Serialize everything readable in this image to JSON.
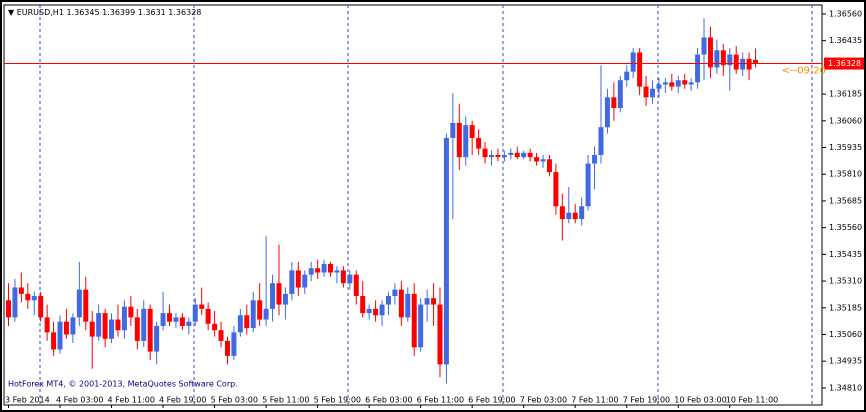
{
  "chart_data": {
    "type": "candlestick",
    "symbol": "EURUSD,H1",
    "footer": "HotForex MT4, © 2001-2013, MetaQuotes Software Corp.",
    "timer_label": "<--09:20",
    "up_color": "#4169e1",
    "down_color": "#ff0000",
    "price_line_color": "#ff0000",
    "grid": false,
    "ylim": [
      1.3473,
      1.36602
    ],
    "yticks": [
      {
        "value": 1.3656,
        "label": "1.36560"
      },
      1.36435,
      1.36185,
      {
        "value": 1.3606,
        "label": "1.36060"
      },
      1.35935,
      {
        "value": 1.3581,
        "label": "1.35810"
      },
      1.35685,
      {
        "value": 1.3556,
        "label": "1.35560"
      },
      1.35435,
      {
        "value": 1.3531,
        "label": "1.35310"
      },
      1.35185,
      {
        "value": 1.3506,
        "label": "1.35060"
      },
      1.34935,
      {
        "value": 1.3481,
        "label": "1.34810"
      }
    ],
    "categories": [
      "3 Feb 2014",
      null,
      null,
      null,
      null,
      null,
      null,
      null,
      "4 Feb 03:00",
      null,
      null,
      null,
      null,
      null,
      null,
      null,
      "4 Feb 11:00",
      null,
      null,
      null,
      null,
      null,
      null,
      null,
      "4 Feb 19:00",
      null,
      null,
      null,
      null,
      null,
      null,
      null,
      "5 Feb 03:00",
      null,
      null,
      null,
      null,
      null,
      null,
      null,
      "5 Feb 11:00",
      null,
      null,
      null,
      null,
      null,
      null,
      null,
      "5 Feb 19:00",
      null,
      null,
      null,
      null,
      null,
      null,
      null,
      "6 Feb 03:00",
      null,
      null,
      null,
      null,
      null,
      null,
      null,
      "6 Feb 11:00",
      null,
      null,
      null,
      null,
      null,
      null,
      null,
      "6 Feb 19:00",
      null,
      null,
      null,
      null,
      null,
      null,
      null,
      "7 Feb 03:00",
      null,
      null,
      null,
      null,
      null,
      null,
      null,
      "7 Feb 11:00",
      null,
      null,
      null,
      null,
      null,
      null,
      null,
      "7 Feb 19:00",
      null,
      null,
      null,
      null,
      null,
      null,
      null,
      "10 Feb 03:00",
      null,
      null,
      null,
      null,
      null,
      null,
      null,
      "10 Feb 11:00",
      null,
      null,
      null,
      null
    ],
    "ohlc": [
      [
        1.3522,
        1.353,
        1.351,
        1.3514
      ],
      [
        1.3514,
        1.3532,
        1.3512,
        1.3528
      ],
      [
        1.3528,
        1.3535,
        1.3521,
        1.3525
      ],
      [
        1.3525,
        1.353,
        1.3518,
        1.3522
      ],
      [
        1.3522,
        1.3526,
        1.3515,
        1.3524
      ],
      [
        1.3524,
        1.3526,
        1.3512,
        1.3514
      ],
      [
        1.3514,
        1.352,
        1.3503,
        1.3507
      ],
      [
        1.3507,
        1.3512,
        1.3496,
        1.3499
      ],
      [
        1.3499,
        1.3515,
        1.3497,
        1.3512
      ],
      [
        1.3512,
        1.3518,
        1.3504,
        1.3506
      ],
      [
        1.3506,
        1.3516,
        1.3502,
        1.3514
      ],
      [
        1.3514,
        1.354,
        1.351,
        1.3527
      ],
      [
        1.3527,
        1.3533,
        1.3508,
        1.3512
      ],
      [
        1.3512,
        1.3517,
        1.349,
        1.3505
      ],
      [
        1.3505,
        1.352,
        1.3503,
        1.3516
      ],
      [
        1.3516,
        1.3518,
        1.35,
        1.3504
      ],
      [
        1.3504,
        1.3516,
        1.3502,
        1.3513
      ],
      [
        1.3513,
        1.352,
        1.3505,
        1.3508
      ],
      [
        1.3508,
        1.3522,
        1.3504,
        1.3519
      ],
      [
        1.3519,
        1.3524,
        1.351,
        1.3514
      ],
      [
        1.3514,
        1.3518,
        1.3499,
        1.3503
      ],
      [
        1.3503,
        1.3522,
        1.35,
        1.3518
      ],
      [
        1.3518,
        1.352,
        1.3494,
        1.3498
      ],
      [
        1.3498,
        1.3512,
        1.3492,
        1.351
      ],
      [
        1.351,
        1.3526,
        1.3508,
        1.3516
      ],
      [
        1.3516,
        1.352,
        1.351,
        1.3512
      ],
      [
        1.3512,
        1.3516,
        1.3509,
        1.3514
      ],
      [
        1.3514,
        1.3516,
        1.3508,
        1.351
      ],
      [
        1.351,
        1.3514,
        1.3506,
        1.3512
      ],
      [
        1.3512,
        1.3523,
        1.351,
        1.352
      ],
      [
        1.352,
        1.3528,
        1.3515,
        1.3518
      ],
      [
        1.3518,
        1.3521,
        1.3508,
        1.3511
      ],
      [
        1.3511,
        1.3517,
        1.3505,
        1.3508
      ],
      [
        1.3508,
        1.3512,
        1.35,
        1.3503
      ],
      [
        1.3503,
        1.3505,
        1.3492,
        1.3496
      ],
      [
        1.3496,
        1.351,
        1.3494,
        1.3507
      ],
      [
        1.3507,
        1.3518,
        1.3505,
        1.3515
      ],
      [
        1.3515,
        1.352,
        1.3506,
        1.3509
      ],
      [
        1.3509,
        1.3526,
        1.3507,
        1.3522
      ],
      [
        1.3522,
        1.353,
        1.351,
        1.3513
      ],
      [
        1.3513,
        1.3552,
        1.351,
        1.3518
      ],
      [
        1.3518,
        1.3534,
        1.3512,
        1.353
      ],
      [
        1.353,
        1.3548,
        1.3515,
        1.352
      ],
      [
        1.352,
        1.3528,
        1.3513,
        1.3525
      ],
      [
        1.3525,
        1.354,
        1.3522,
        1.3536
      ],
      [
        1.3536,
        1.354,
        1.3524,
        1.3528
      ],
      [
        1.3528,
        1.3536,
        1.3525,
        1.3534
      ],
      [
        1.3534,
        1.354,
        1.3531,
        1.3537
      ],
      [
        1.3537,
        1.3541,
        1.3532,
        1.3535
      ],
      [
        1.3535,
        1.3541,
        1.3533,
        1.3539
      ],
      [
        1.3539,
        1.354,
        1.3533,
        1.3535
      ],
      [
        1.3535,
        1.3538,
        1.353,
        1.3536
      ],
      [
        1.3536,
        1.3538,
        1.3528,
        1.353
      ],
      [
        1.353,
        1.3536,
        1.3527,
        1.3534
      ],
      [
        1.3534,
        1.3536,
        1.352,
        1.3524
      ],
      [
        1.3524,
        1.3531,
        1.3514,
        1.3516
      ],
      [
        1.3516,
        1.352,
        1.3513,
        1.3518
      ],
      [
        1.3518,
        1.3522,
        1.3512,
        1.3515
      ],
      [
        1.3515,
        1.3522,
        1.351,
        1.352
      ],
      [
        1.352,
        1.3526,
        1.3515,
        1.3524
      ],
      [
        1.3524,
        1.353,
        1.352,
        1.3527
      ],
      [
        1.3527,
        1.3531,
        1.351,
        1.3514
      ],
      [
        1.3514,
        1.3528,
        1.3512,
        1.3525
      ],
      [
        1.3525,
        1.353,
        1.3496,
        1.35
      ],
      [
        1.35,
        1.3523,
        1.3498,
        1.352
      ],
      [
        1.352,
        1.3527,
        1.3512,
        1.3523
      ],
      [
        1.3523,
        1.353,
        1.351,
        1.352
      ],
      [
        1.352,
        1.3528,
        1.3486,
        1.3492
      ],
      [
        1.3492,
        1.36,
        1.3483,
        1.3598
      ],
      [
        1.3598,
        1.3619,
        1.356,
        1.3605
      ],
      [
        1.3605,
        1.3614,
        1.3583,
        1.3589
      ],
      [
        1.3589,
        1.3608,
        1.3585,
        1.3604
      ],
      [
        1.3604,
        1.3606,
        1.359,
        1.3598
      ],
      [
        1.3598,
        1.3602,
        1.359,
        1.3593
      ],
      [
        1.3593,
        1.3596,
        1.3586,
        1.3589
      ],
      [
        1.3589,
        1.3592,
        1.3585,
        1.359
      ],
      [
        1.359,
        1.3593,
        1.3587,
        1.3589
      ],
      [
        1.3589,
        1.3592,
        1.3587,
        1.359
      ],
      [
        1.359,
        1.3593,
        1.3588,
        1.3591
      ],
      [
        1.3591,
        1.3594,
        1.3588,
        1.3589
      ],
      [
        1.3589,
        1.3592,
        1.3588,
        1.3591
      ],
      [
        1.3591,
        1.3593,
        1.3587,
        1.3589
      ],
      [
        1.3589,
        1.3591,
        1.3585,
        1.3587
      ],
      [
        1.3587,
        1.359,
        1.3584,
        1.3588
      ],
      [
        1.3588,
        1.359,
        1.358,
        1.3582
      ],
      [
        1.3582,
        1.3586,
        1.3562,
        1.3566
      ],
      [
        1.3566,
        1.3572,
        1.355,
        1.356
      ],
      [
        1.356,
        1.3575,
        1.3558,
        1.3563
      ],
      [
        1.3563,
        1.3567,
        1.3558,
        1.356
      ],
      [
        1.356,
        1.357,
        1.3557,
        1.3566
      ],
      [
        1.3566,
        1.359,
        1.3564,
        1.3586
      ],
      [
        1.3586,
        1.3594,
        1.3574,
        1.359
      ],
      [
        1.359,
        1.3632,
        1.3586,
        1.3603
      ],
      [
        1.3603,
        1.3621,
        1.36,
        1.3617
      ],
      [
        1.3617,
        1.3624,
        1.3606,
        1.3612
      ],
      [
        1.3612,
        1.3627,
        1.361,
        1.3625
      ],
      [
        1.3625,
        1.3632,
        1.3622,
        1.3629
      ],
      [
        1.3629,
        1.364,
        1.3626,
        1.3638
      ],
      [
        1.3638,
        1.364,
        1.3618,
        1.3622
      ],
      [
        1.3622,
        1.3627,
        1.3613,
        1.3617
      ],
      [
        1.3617,
        1.3625,
        1.3614,
        1.3621
      ],
      [
        1.3621,
        1.3626,
        1.3617,
        1.3623
      ],
      [
        1.3623,
        1.3626,
        1.3619,
        1.3624
      ],
      [
        1.3624,
        1.3628,
        1.362,
        1.3622
      ],
      [
        1.3622,
        1.3627,
        1.3619,
        1.3625
      ],
      [
        1.3625,
        1.3628,
        1.3621,
        1.3623
      ],
      [
        1.3623,
        1.3626,
        1.362,
        1.3624
      ],
      [
        1.3624,
        1.364,
        1.3621,
        1.3637
      ],
      [
        1.3637,
        1.3654,
        1.3625,
        1.3645
      ],
      [
        1.3645,
        1.365,
        1.3626,
        1.3631
      ],
      [
        1.3631,
        1.3644,
        1.3628,
        1.3639
      ],
      [
        1.3639,
        1.3642,
        1.3627,
        1.3632
      ],
      [
        1.3632,
        1.364,
        1.362,
        1.3637
      ],
      [
        1.3637,
        1.3641,
        1.3628,
        1.363
      ],
      [
        1.363,
        1.3638,
        1.3627,
        1.3635
      ],
      [
        1.3635,
        1.3638,
        1.3625,
        1.363
      ],
      [
        1.36345,
        1.36399,
        1.3631,
        1.36328
      ]
    ]
  }
}
